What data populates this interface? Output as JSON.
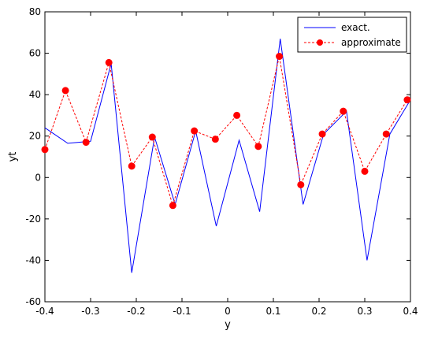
{
  "chart_data": {
    "type": "line",
    "title": "",
    "xlabel": "y",
    "ylabel": "yt",
    "xlim": [
      -0.4,
      0.4
    ],
    "ylim": [
      -60,
      80
    ],
    "xticks": [
      -0.4,
      -0.3,
      -0.2,
      -0.1,
      0,
      0.1,
      0.2,
      0.3,
      0.4
    ],
    "xtick_labels": [
      "-0.4",
      "-0.3",
      "-0.2",
      "-0.1",
      "0",
      "0.1",
      "0.2",
      "0.3",
      "0.4"
    ],
    "yticks": [
      -60,
      -40,
      -20,
      0,
      20,
      40,
      60,
      80
    ],
    "ytick_labels": [
      "-60",
      "-40",
      "-20",
      "0",
      "20",
      "40",
      "60",
      "80"
    ],
    "grid": false,
    "legend_position": "top-right",
    "series": [
      {
        "name": "exact.",
        "color": "#0000ff",
        "style": "solid",
        "marker": "none",
        "x": [
          -0.4,
          -0.35,
          -0.3,
          -0.255,
          -0.21,
          -0.16,
          -0.115,
          -0.07,
          -0.025,
          0.025,
          0.07,
          0.115,
          0.165,
          0.21,
          0.26,
          0.305,
          0.355,
          0.4
        ],
        "y": [
          24,
          16.5,
          17.5,
          55,
          -46,
          19.5,
          -13,
          22.5,
          -23.5,
          18,
          -16.5,
          67,
          -13,
          21,
          32,
          -40,
          21,
          37.5
        ]
      },
      {
        "name": "approximate",
        "color": "#ff0000",
        "style": "dashed",
        "marker": "circle",
        "x": [
          -0.4,
          -0.355,
          -0.31,
          -0.26,
          -0.21,
          -0.165,
          -0.12,
          -0.073,
          -0.027,
          0.02,
          0.067,
          0.113,
          0.16,
          0.207,
          0.253,
          0.3,
          0.347,
          0.393
        ],
        "y": [
          13.5,
          42,
          17,
          55.5,
          5.5,
          19.5,
          -13.5,
          22.5,
          18.5,
          30,
          15,
          58.5,
          -3.5,
          21,
          32,
          3,
          21,
          37.5
        ]
      }
    ]
  }
}
